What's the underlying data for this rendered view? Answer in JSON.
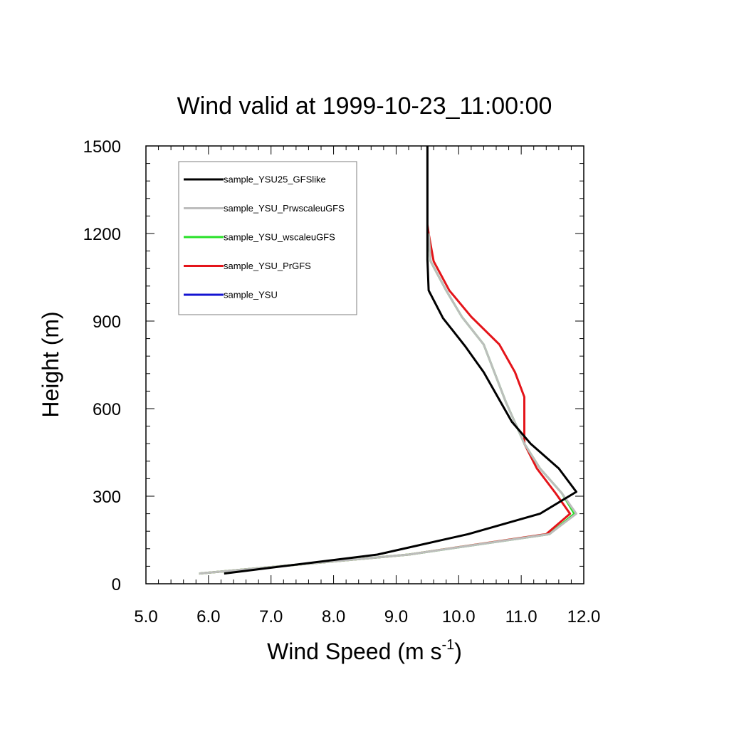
{
  "chart_data": {
    "type": "line",
    "title": "Wind valid at 1999-10-23_11:00:00",
    "xlabel": "Wind Speed (m s",
    "xlabel_sup": "-1",
    "xlabel_end": ")",
    "ylabel": "Height (m)",
    "xlim": [
      5.0,
      12.0
    ],
    "ylim": [
      0,
      1500
    ],
    "xticks": [
      5.0,
      6.0,
      7.0,
      8.0,
      9.0,
      10.0,
      11.0,
      12.0
    ],
    "xtick_labels": [
      "5.0",
      "6.0",
      "7.0",
      "8.0",
      "9.0",
      "10.0",
      "11.0",
      "12.0"
    ],
    "yticks": [
      0,
      300,
      600,
      900,
      1200,
      1500
    ],
    "ytick_labels": [
      "0",
      "300",
      "600",
      "900",
      "1200",
      "1500"
    ],
    "grid": false,
    "legend_position": "top-left",
    "series": [
      {
        "name": "sample_YSU25_GFSlike",
        "color": "#000000",
        "x": [
          6.25,
          8.7,
          10.15,
          11.3,
          11.88,
          11.6,
          11.15,
          10.85,
          10.4,
          10.1,
          9.75,
          9.52,
          9.5,
          9.5,
          9.5
        ],
        "y": [
          35,
          100,
          170,
          240,
          315,
          395,
          480,
          555,
          725,
          815,
          910,
          1005,
          1110,
          1300,
          1500
        ]
      },
      {
        "name": "sample_YSU_PrwscaleuGFS",
        "color": "#bdbdbd",
        "x": [
          5.85,
          9.2,
          11.45,
          11.88,
          11.65,
          11.3,
          11.05,
          10.75,
          10.4,
          10.05,
          9.8,
          9.55,
          9.52
        ],
        "y": [
          35,
          100,
          170,
          240,
          310,
          395,
          480,
          625,
          820,
          915,
          1005,
          1105,
          1200
        ]
      },
      {
        "name": "sample_YSU_wscaleuGFS",
        "color": "#26e026",
        "x": [
          5.85,
          9.2,
          11.45,
          11.85,
          11.65,
          11.3,
          11.05,
          10.75,
          10.4,
          10.05,
          9.8,
          9.55,
          9.52
        ],
        "y": [
          35,
          100,
          170,
          240,
          310,
          395,
          480,
          625,
          820,
          915,
          1005,
          1105,
          1200
        ]
      },
      {
        "name": "sample_YSU_PrGFS",
        "color": "#e4141a",
        "x": [
          5.85,
          9.2,
          11.4,
          11.78,
          11.55,
          11.25,
          11.05,
          11.05,
          10.9,
          10.65,
          10.2,
          9.85,
          9.6,
          9.52,
          9.5
        ],
        "y": [
          35,
          100,
          170,
          240,
          310,
          395,
          480,
          640,
          725,
          820,
          915,
          1005,
          1105,
          1200,
          1230
        ]
      },
      {
        "name": "sample_YSU",
        "color": "#1414d2",
        "x": [],
        "y": []
      }
    ]
  }
}
